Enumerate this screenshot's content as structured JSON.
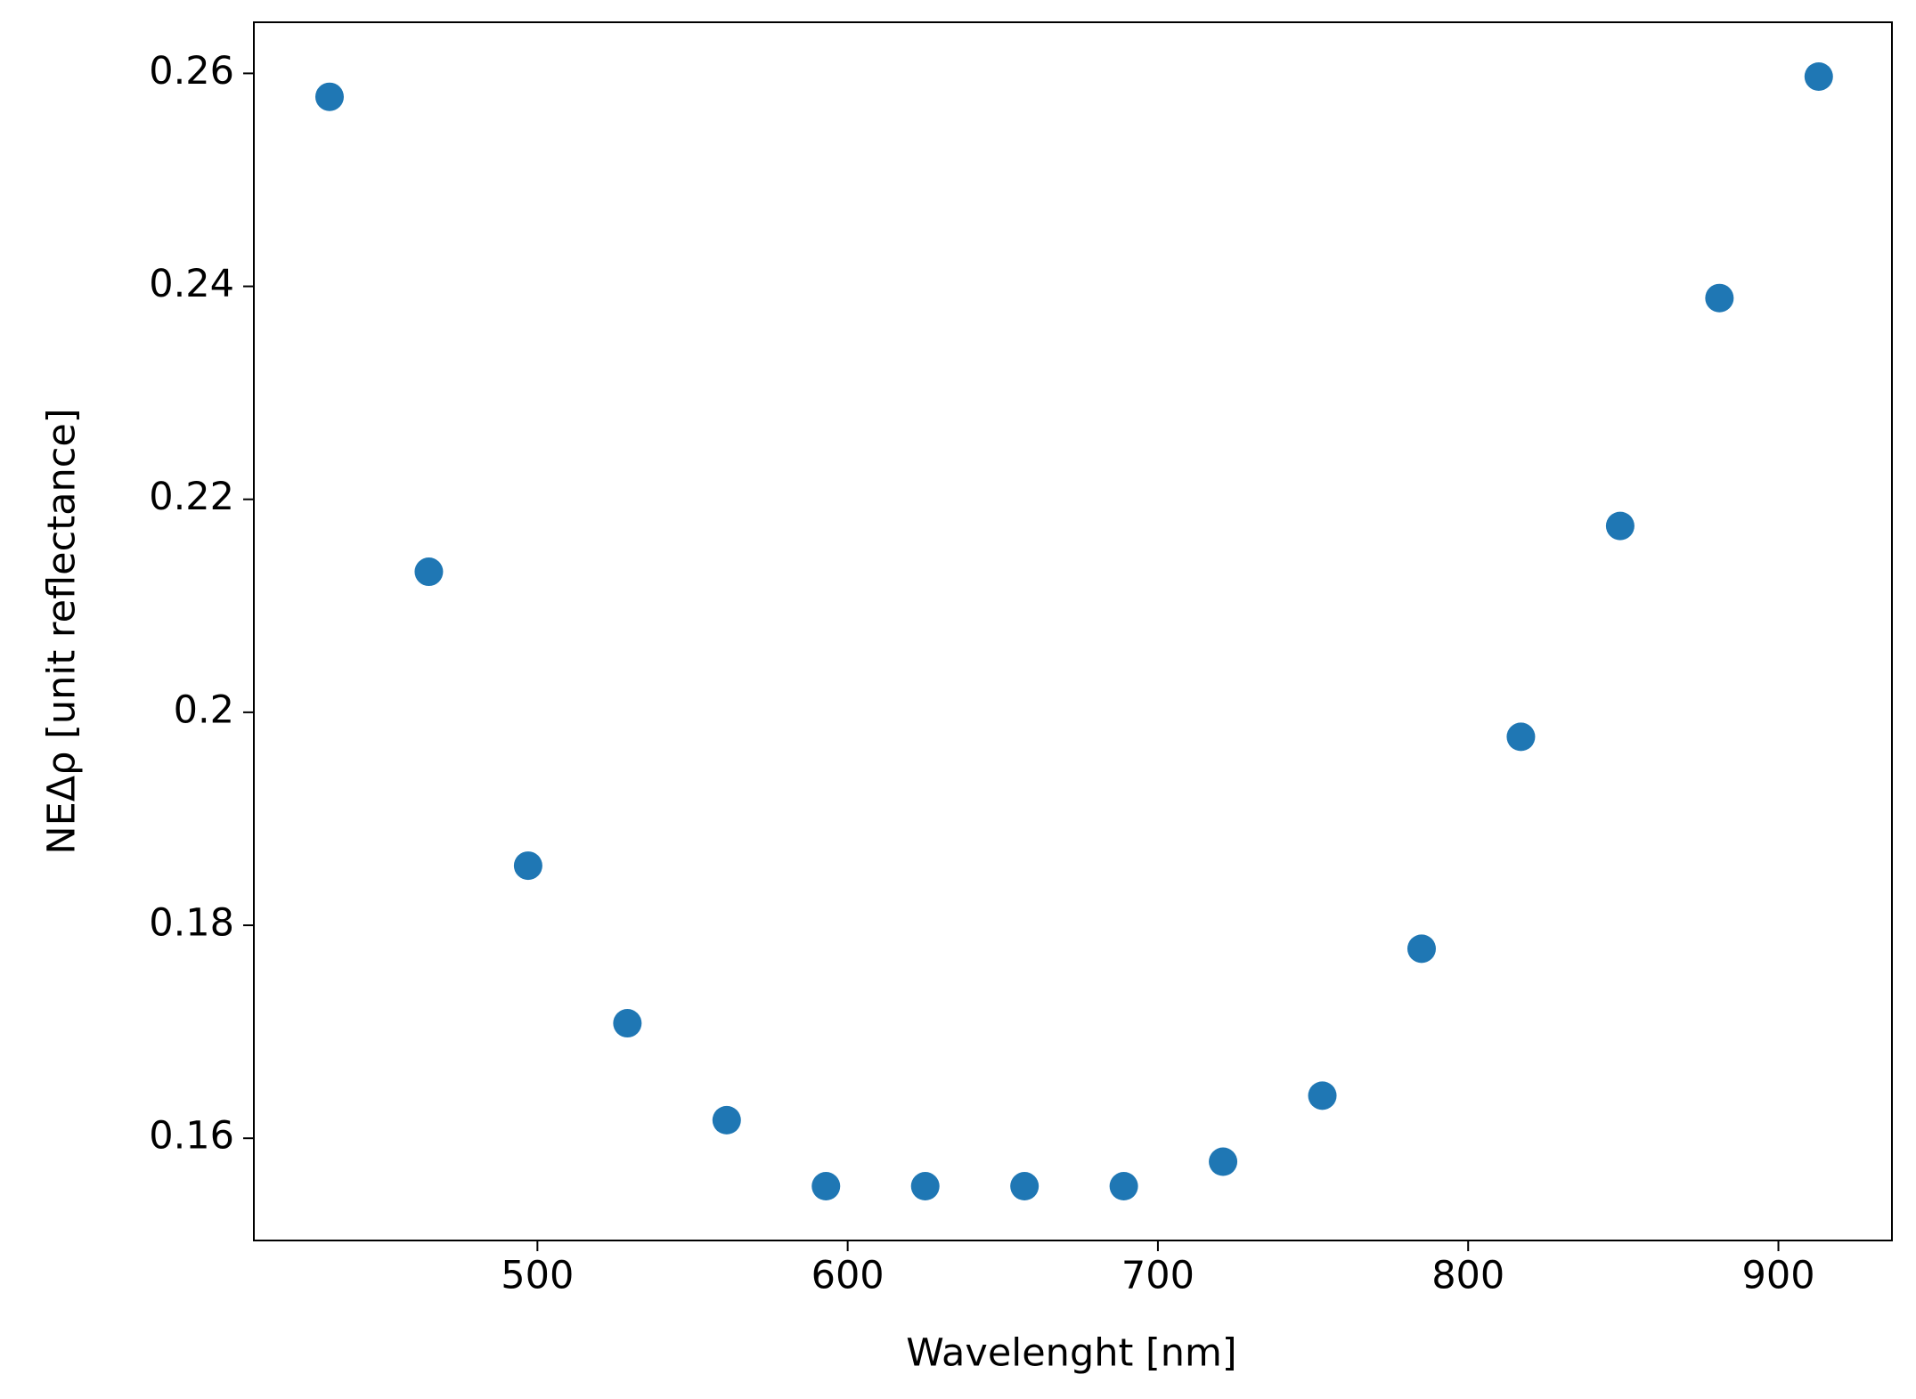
{
  "chart_data": {
    "type": "scatter",
    "x_label": "Wavelenght [nm]",
    "y_label": "NEΔρ [unit reflectance]",
    "x": [
      433,
      465,
      497,
      529,
      561,
      593,
      625,
      657,
      689,
      721,
      753,
      785,
      817,
      849,
      881,
      913
    ],
    "series": [
      {
        "color": "#1f77b4",
        "values": [
          0.2578,
          0.2132,
          0.1856,
          0.1708,
          0.1617,
          0.1555,
          0.1555,
          0.1555,
          0.1555,
          0.1578,
          0.164,
          0.1778,
          0.1977,
          0.2175,
          0.2389,
          0.2597
        ]
      }
    ],
    "xlim": [
      408.6,
      936.6
    ],
    "ylim": [
      0.1504,
      0.2648
    ],
    "xticks": [
      500,
      600,
      700,
      800,
      900
    ],
    "yticks": [
      0.16,
      0.18,
      0.2,
      0.22,
      0.24,
      0.26
    ]
  }
}
